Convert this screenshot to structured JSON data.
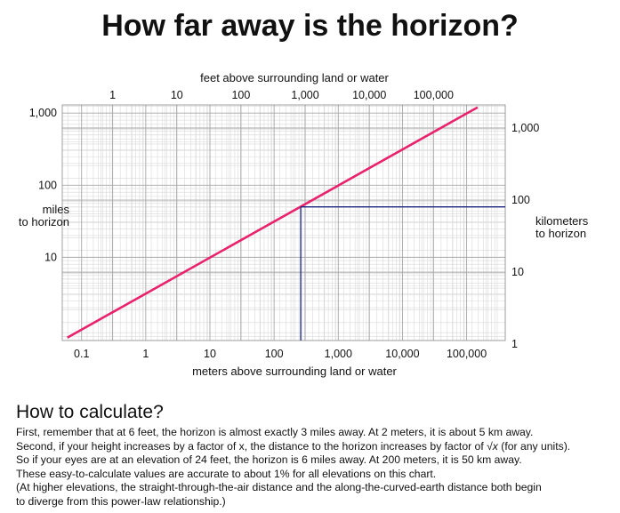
{
  "title": "How far away is the horizon?",
  "chart_data": {
    "type": "line",
    "x_top_label": "feet above surrounding land or water",
    "x_bottom_label": "meters above surrounding land or water",
    "y_left_label": [
      "miles",
      "to horizon"
    ],
    "y_right_label": [
      "kilometers",
      "to horizon"
    ],
    "scale": "log-log",
    "grid": true,
    "xlim_meters": [
      0.05,
      400000
    ],
    "ylim_miles": [
      0.7,
      1300
    ],
    "top_ticks": [
      "1",
      "10",
      "100",
      "1,000",
      "10,000",
      "100,000"
    ],
    "top_tick_values_feet": [
      1,
      10,
      100,
      1000,
      10000,
      100000
    ],
    "bottom_ticks": [
      "0.1",
      "1",
      "10",
      "100",
      "1,000",
      "10,000",
      "100,000"
    ],
    "bottom_tick_values_meters": [
      0.1,
      1,
      10,
      100,
      1000,
      10000,
      100000
    ],
    "left_ticks": [
      "10",
      "100",
      "1,000"
    ],
    "left_tick_values_miles": [
      10,
      100,
      1000
    ],
    "right_ticks": [
      "1",
      "10",
      "100",
      "1,000"
    ],
    "right_tick_values_km": [
      1,
      10,
      100,
      1000
    ],
    "series": [
      {
        "color": "#e8226c",
        "x_meters": [
          0.05,
          1,
          10,
          100,
          1000,
          10000,
          100000,
          400000
        ],
        "y_miles": [
          0.7,
          3.13,
          9.9,
          31.3,
          99,
          313,
          990,
          1980
        ]
      }
    ],
    "annotation": {
      "color": "#1a237e",
      "x_meters": 260,
      "y_miles": 50
    }
  },
  "explanation": {
    "heading": "How to calculate?",
    "line1": "First, remember that at 6 feet, the horizon is almost exactly 3 miles away.  At 2 meters, it is about 5 km away.",
    "line2_pre": "Second, if your height increases by a factor of x, the distance to the horizon increases by factor of ",
    "line2_sqrt": "√x",
    "line2_post": "  (for any units).",
    "line3": "So if your eyes are at an elevation of 24 feet, the horizon is 6 miles away. At 200 meters, it is 50 km away.",
    "line4": "These easy-to-calculate values are accurate to about 1% for all elevations on this chart.",
    "line5": "(At higher elevations, the straight-through-the-air distance and the along-the-curved-earth distance both begin",
    "line6": "to diverge from this power-law relationship.)"
  }
}
